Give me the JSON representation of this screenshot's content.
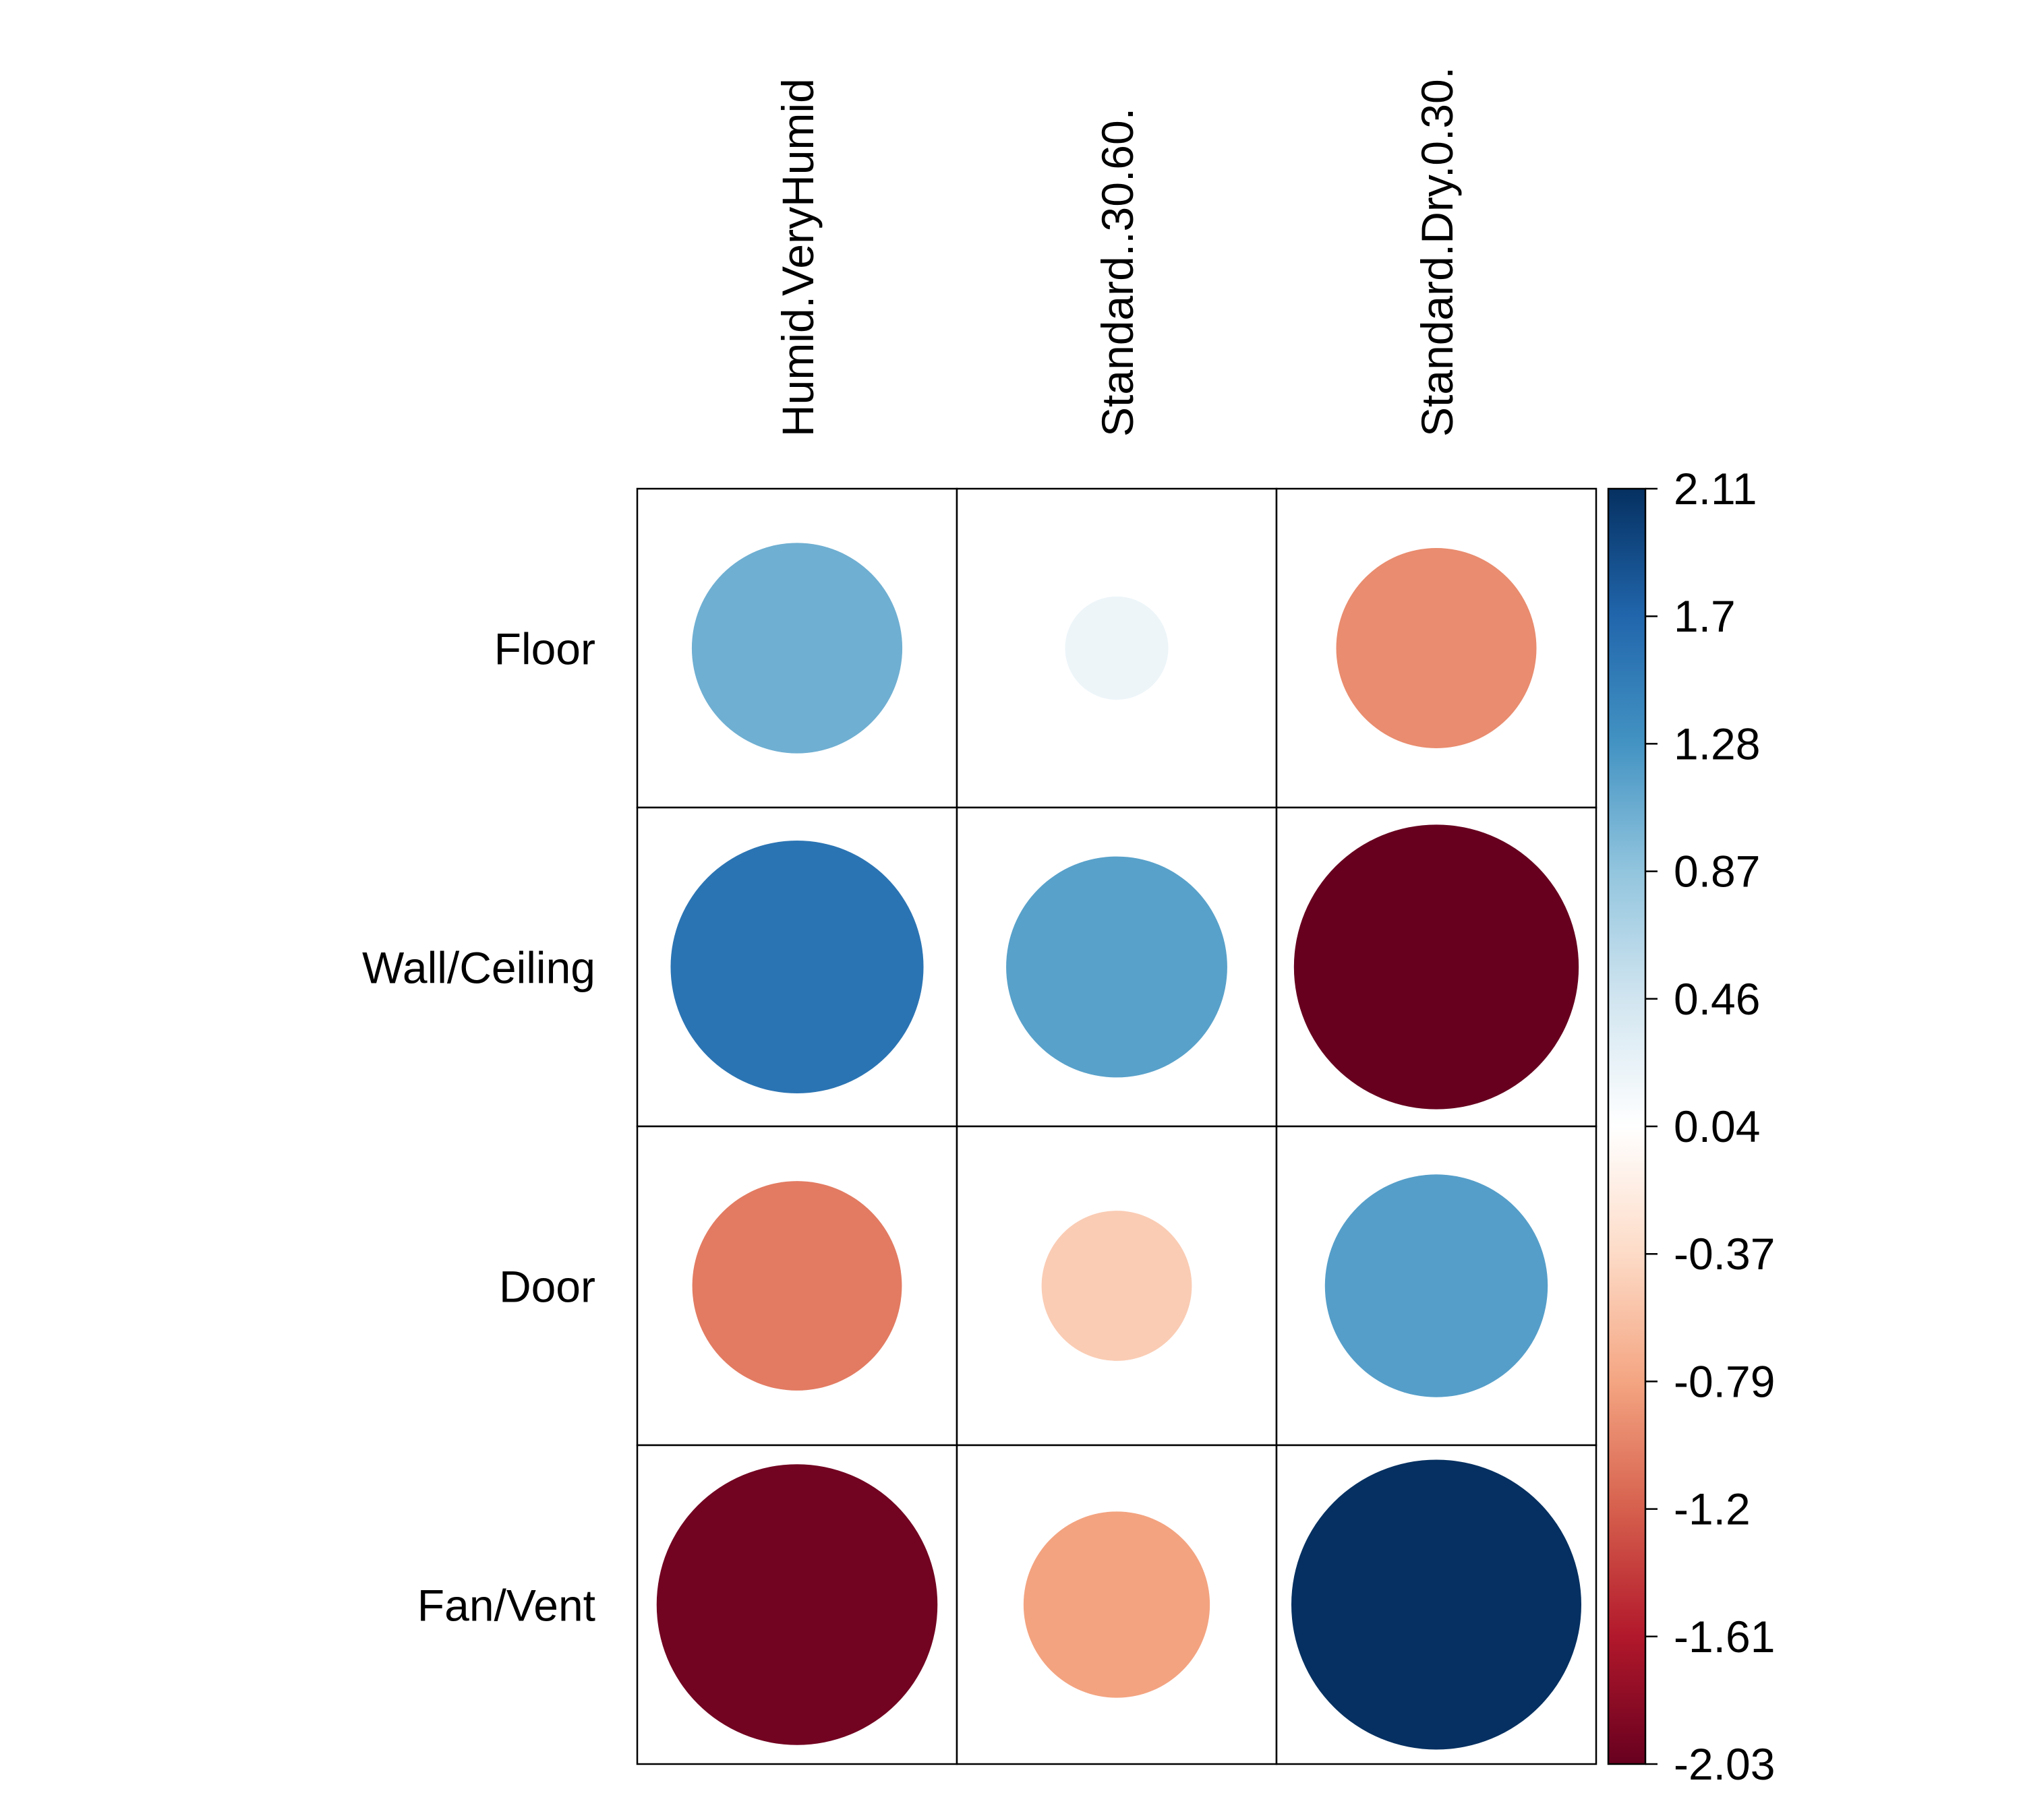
{
  "chart_data": {
    "type": "heatmap",
    "variant": "corrplot-circle",
    "columns": [
      "Humid.VeryHumid",
      "Standard..30.60.",
      "Standard.Dry.0.30."
    ],
    "rows": [
      "Floor",
      "Wall/Ceiling",
      "Door",
      "Fan/Vent"
    ],
    "values": [
      [
        1.05,
        0.2,
        -0.94
      ],
      [
        1.57,
        1.17,
        -2.03
      ],
      [
        -1.04,
        -0.49,
        1.19
      ],
      [
        -1.97,
        -0.8,
        2.11
      ]
    ],
    "color_scale": {
      "min": -2.03,
      "max": 2.11,
      "ticks": [
        "2.11",
        "1.7",
        "1.28",
        "0.87",
        "0.46",
        "0.04",
        "-0.37",
        "-0.79",
        "-1.2",
        "-1.61",
        "-2.03"
      ],
      "palette": [
        "#67001F",
        "#B2182B",
        "#D6604D",
        "#F4A582",
        "#FDDBC7",
        "#FFFFFF",
        "#D1E5F0",
        "#92C5DE",
        "#4393C3",
        "#2166AC",
        "#053061"
      ]
    },
    "legend": "right"
  }
}
